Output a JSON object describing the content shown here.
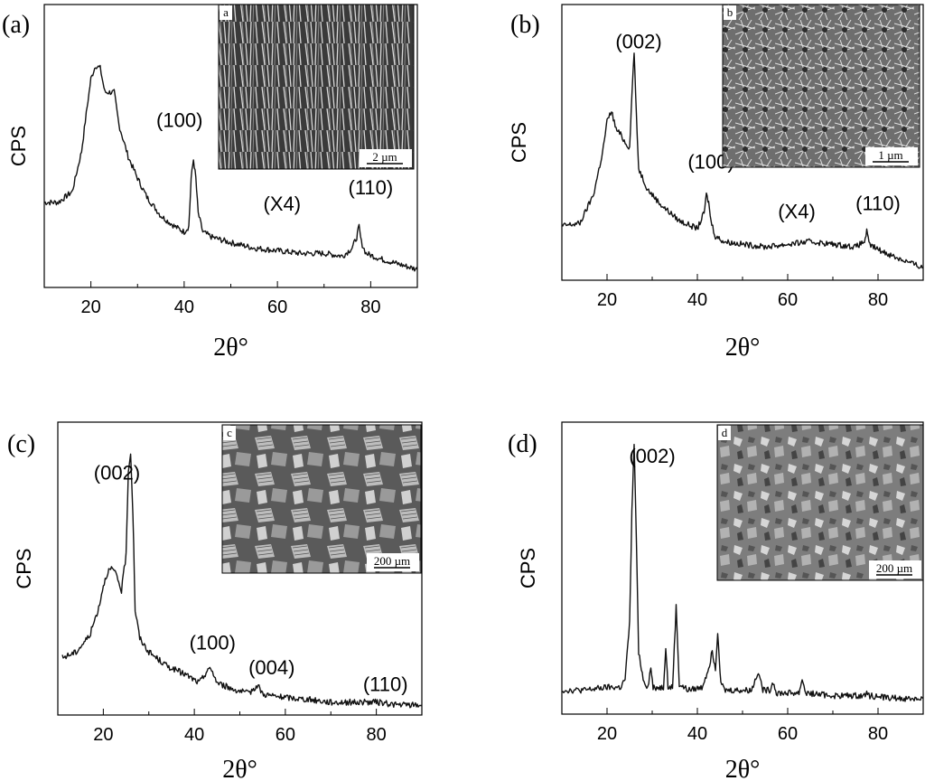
{
  "chart_data": [
    {
      "panel": "(a)",
      "type": "line",
      "ylabel": "CPS",
      "xlabel": "2θ°",
      "xlim": [
        10,
        90
      ],
      "xticks": [
        20,
        40,
        60,
        80
      ],
      "y_units": "arbitrary",
      "ylim": [
        0,
        100
      ],
      "annotations": [
        {
          "text": "(100)",
          "x": 39,
          "y": 57
        },
        {
          "text": "(X4)",
          "x": 61,
          "y": 26
        },
        {
          "text": "(110)",
          "x": 80,
          "y": 32
        }
      ],
      "series": [
        {
          "x": [
            10,
            13,
            16,
            18,
            19,
            20,
            21,
            22,
            23,
            24,
            25,
            26,
            28,
            30,
            32,
            35,
            38,
            40,
            41,
            41.5,
            42,
            42.5,
            43,
            44,
            46,
            50,
            55,
            60,
            65,
            70,
            74,
            76,
            77,
            77.5,
            78,
            79,
            82,
            86,
            90
          ],
          "y": [
            29,
            29,
            33,
            48,
            62,
            75,
            80,
            79,
            70,
            70,
            70,
            58,
            46,
            38,
            31,
            24,
            20,
            18,
            20,
            38,
            45,
            38,
            25,
            18,
            16,
            14,
            12,
            11,
            10,
            10,
            9,
            12,
            16,
            20,
            14,
            10,
            8,
            6,
            4
          ]
        }
      ],
      "inset": {
        "letter": "a",
        "scale_bar": "2 µm",
        "texture": "fibers"
      }
    },
    {
      "panel": "(b)",
      "type": "line",
      "ylabel": "CPS",
      "xlabel": "2θ°",
      "xlim": [
        10,
        90
      ],
      "xticks": [
        20,
        40,
        60,
        80
      ],
      "y_units": "arbitrary",
      "ylim": [
        0,
        100
      ],
      "annotations": [
        {
          "text": "(002)",
          "x": 27,
          "y": 86
        },
        {
          "text": "(100)",
          "x": 43,
          "y": 40
        },
        {
          "text": "(X4)",
          "x": 62,
          "y": 21
        },
        {
          "text": "(110)",
          "x": 80,
          "y": 24
        }
      ],
      "series": [
        {
          "x": [
            10,
            14,
            17,
            19,
            20,
            21,
            22,
            23,
            24,
            25,
            25.5,
            26,
            26.5,
            27,
            29,
            32,
            36,
            40,
            41.5,
            42,
            42.5,
            43,
            44,
            46,
            50,
            55,
            60,
            65,
            70,
            75,
            77,
            77.5,
            78,
            80,
            84,
            90
          ],
          "y": [
            18,
            19,
            30,
            46,
            58,
            62,
            55,
            53,
            50,
            48,
            68,
            85,
            60,
            40,
            32,
            26,
            20,
            17,
            23,
            30,
            27,
            20,
            14,
            12,
            11,
            10,
            11,
            12,
            11,
            10,
            12,
            16,
            11,
            9,
            6,
            2
          ]
        }
      ],
      "inset": {
        "letter": "b",
        "scale_bar": "1 µm",
        "texture": "network"
      }
    },
    {
      "panel": "(c)",
      "type": "line",
      "ylabel": "CPS",
      "xlabel": "2θ°",
      "xlim": [
        10,
        90
      ],
      "xticks": [
        20,
        40,
        60,
        80
      ],
      "y_units": "arbitrary",
      "ylim": [
        0,
        100
      ],
      "annotations": [
        {
          "text": "(002)",
          "x": 23,
          "y": 82
        },
        {
          "text": "(100)",
          "x": 44,
          "y": 21
        },
        {
          "text": "(004)",
          "x": 57,
          "y": 12
        },
        {
          "text": "(110)",
          "x": 82,
          "y": 6
        }
      ],
      "series": [
        {
          "x": [
            11,
            14,
            17,
            19,
            20,
            21,
            22,
            23,
            24,
            25,
            25.5,
            26,
            26.5,
            27,
            28,
            30,
            34,
            38,
            41,
            42,
            43,
            44,
            45,
            48,
            52,
            53,
            54,
            55,
            58,
            65,
            70,
            75,
            80,
            85,
            90
          ],
          "y": [
            18,
            20,
            26,
            36,
            44,
            49,
            50,
            47,
            42,
            55,
            85,
            92,
            70,
            35,
            25,
            20,
            15,
            12,
            9,
            11,
            14,
            13,
            9,
            7,
            5,
            7,
            8,
            5,
            4,
            3,
            2,
            2,
            2,
            1,
            1
          ]
        }
      ],
      "inset": {
        "letter": "c",
        "scale_bar": "200 µm",
        "texture": "rubble"
      }
    },
    {
      "panel": "(d)",
      "type": "line",
      "ylabel": "CPS",
      "xlabel": "2θ°",
      "xlim": [
        10,
        90
      ],
      "xticks": [
        20,
        40,
        60,
        80
      ],
      "y_units": "arbitrary",
      "ylim": [
        0,
        100
      ],
      "annotations": [
        {
          "text": "(002)",
          "x": 30,
          "y": 88
        }
      ],
      "series": [
        {
          "x": [
            10,
            15,
            20,
            23,
            24,
            25,
            25.5,
            26,
            26.5,
            27,
            28,
            29,
            29.7,
            30.2,
            31,
            32.5,
            33,
            33.5,
            34.5,
            35.3,
            36,
            38,
            41,
            42.5,
            43.3,
            44,
            44.5,
            45.2,
            46,
            48,
            50,
            52,
            53.5,
            54.5,
            56,
            56.8,
            57.5,
            60,
            62.5,
            63.2,
            64,
            70,
            77,
            77.5,
            78,
            85,
            90
          ],
          "y": [
            6,
            6,
            7,
            7,
            10,
            30,
            70,
            95,
            60,
            20,
            10,
            7,
            14,
            7,
            7,
            7,
            22,
            7,
            7,
            36,
            8,
            6,
            7,
            14,
            20,
            14,
            27,
            9,
            6,
            6,
            6,
            6,
            13,
            6,
            6,
            9,
            5,
            5,
            5,
            10,
            5,
            4,
            4,
            6,
            4,
            3,
            3
          ]
        }
      ],
      "inset": {
        "letter": "d",
        "scale_bar": "200 µm",
        "texture": "flakes"
      }
    }
  ]
}
